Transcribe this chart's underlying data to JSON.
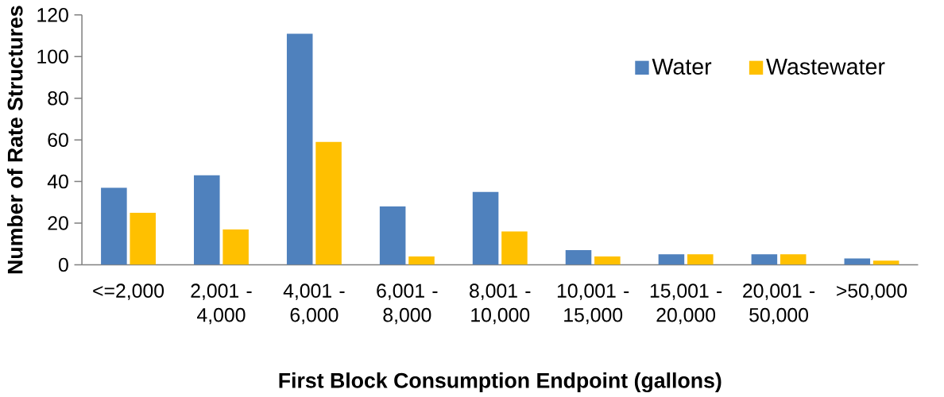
{
  "chart_data": {
    "type": "bar",
    "xlabel": "First Block Consumption Endpoint (gallons)",
    "ylabel": "Number of Rate Structures",
    "categories": [
      "<=2,000",
      "2,001 - 4,000",
      "4,001 - 6,000",
      "6,001 - 8,000",
      "8,001 - 10,000",
      "10,001 - 15,000",
      "15,001 - 20,000",
      "20,001 - 50,000",
      ">50,000"
    ],
    "series": [
      {
        "name": "Water",
        "color": "#4f81bd",
        "values": [
          37,
          43,
          111,
          28,
          35,
          7,
          5,
          5,
          3
        ]
      },
      {
        "name": "Wastewater",
        "color": "#ffc000",
        "values": [
          25,
          17,
          59,
          4,
          16,
          4,
          5,
          5,
          2
        ]
      }
    ],
    "ylim": [
      0,
      120
    ],
    "yticks": [
      0,
      20,
      40,
      60,
      80,
      100,
      120
    ],
    "grid": false,
    "legend": "top right"
  }
}
